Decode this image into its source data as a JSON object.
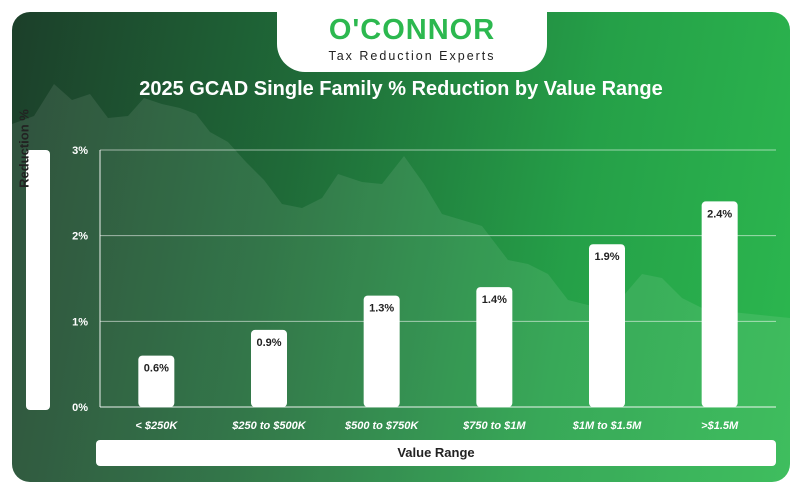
{
  "brand": {
    "name": "O'CONNOR",
    "tagline": "Tax Reduction Experts"
  },
  "colors": {
    "accent": "#2cb84f",
    "bar": "#ffffff",
    "text_dark": "#222222"
  },
  "chart_data": {
    "type": "bar",
    "title": "2025 GCAD Single Family % Reduction by Value Range",
    "xlabel": "Value Range",
    "ylabel": "Reduction %",
    "categories": [
      "< $250K",
      "$250 to $500K",
      "$500 to $750K",
      "$750 to $1M",
      "$1M to $1.5M",
      ">$1.5M"
    ],
    "values": [
      0.6,
      0.9,
      1.3,
      1.4,
      1.9,
      2.4
    ],
    "value_labels": [
      "0.6%",
      "0.9%",
      "1.3%",
      "1.4%",
      "1.9%",
      "2.4%"
    ],
    "yticks": [
      0,
      1,
      2,
      3
    ],
    "ytick_labels": [
      "0%",
      "1%",
      "2%",
      "3%"
    ],
    "ylim": [
      0,
      3
    ],
    "grid": true,
    "legend": "none"
  }
}
